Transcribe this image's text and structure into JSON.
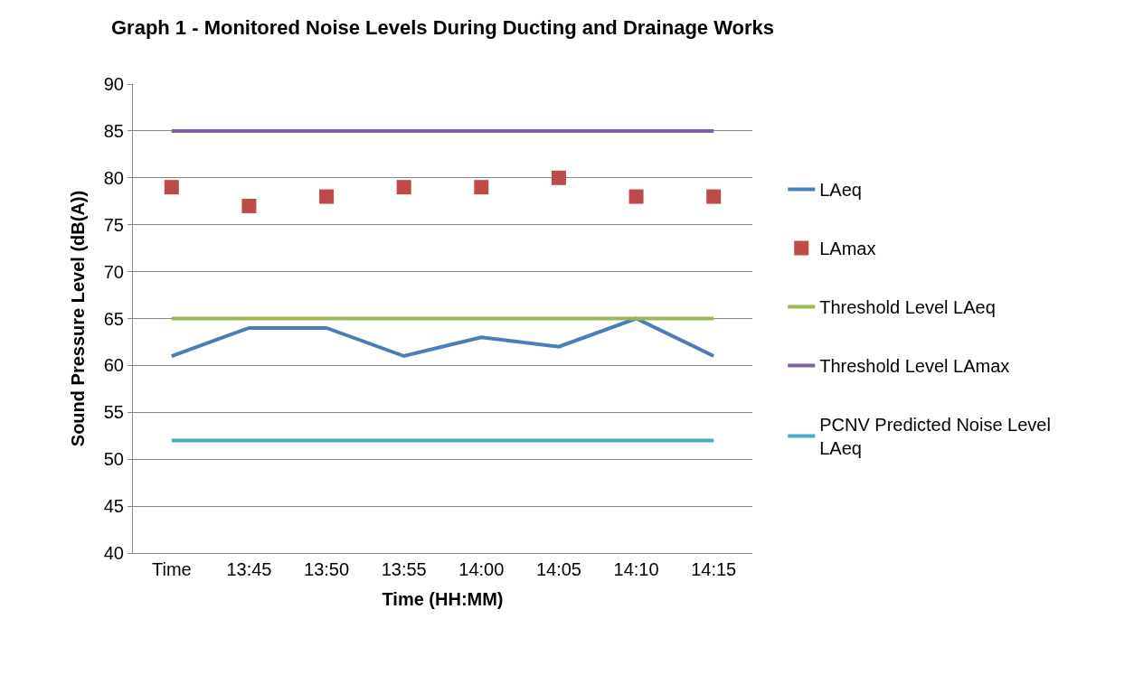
{
  "chart_data": {
    "type": "line",
    "title": "Graph 1 - Monitored Noise Levels During Ducting and Drainage Works",
    "xlabel": "Time (HH:MM)",
    "ylabel": "Sound Pressure Level (dB(A))",
    "categories": [
      "Time",
      "13:45",
      "13:50",
      "13:55",
      "14:00",
      "14:05",
      "14:10",
      "14:15"
    ],
    "series": [
      {
        "name": "LAeq",
        "color": "#4a7ebb",
        "values": [
          61,
          64,
          64,
          61,
          63,
          62,
          65,
          61
        ]
      },
      {
        "name": "LAmax",
        "type": "scatter",
        "marker": "square",
        "color": "#be4b48",
        "values": [
          79,
          77,
          78,
          79,
          79,
          80,
          78,
          78
        ]
      },
      {
        "name": "Threshold Level LAeq",
        "color": "#98b954",
        "values": [
          65,
          65,
          65,
          65,
          65,
          65,
          65,
          65
        ]
      },
      {
        "name": "Threshold Level LAmax",
        "color": "#7d60a0",
        "values": [
          85,
          85,
          85,
          85,
          85,
          85,
          85,
          85
        ]
      },
      {
        "name": "PCNV Predicted Noise Level LAeq",
        "color": "#46aac5",
        "values": [
          52,
          52,
          52,
          52,
          52,
          52,
          52,
          52
        ]
      }
    ],
    "ylim": [
      40,
      90
    ],
    "yticks": [
      40,
      45,
      50,
      55,
      60,
      65,
      70,
      75,
      80,
      85,
      90
    ],
    "grid": "y",
    "legend": "right"
  }
}
